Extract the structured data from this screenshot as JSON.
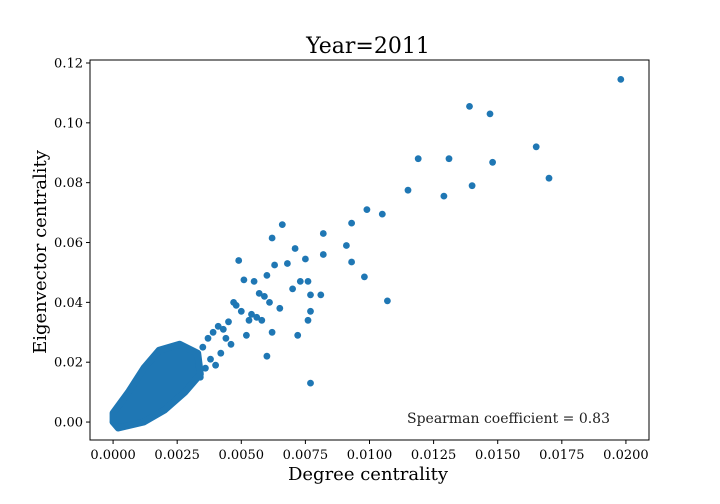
{
  "chart_data": {
    "type": "scatter",
    "title": "Year=2011",
    "xlabel": "Degree centrality",
    "ylabel": "Eigenvector centrality",
    "xlim": [
      -0.0009,
      0.0209
    ],
    "ylim": [
      -0.006,
      0.121
    ],
    "x_ticks": [
      "0.0000",
      "0.0025",
      "0.0050",
      "0.0075",
      "0.0100",
      "0.0125",
      "0.0150",
      "0.0175",
      "0.0200"
    ],
    "y_ticks": [
      "0.00",
      "0.02",
      "0.04",
      "0.06",
      "0.08",
      "0.10",
      "0.12"
    ],
    "annotation": "Spearman coefficient = 0.83",
    "grid": false,
    "marker_color": "#1f77b4",
    "series": [
      {
        "x": [
          0.0198,
          0.0139,
          0.0147,
          0.0165,
          0.017,
          0.0148,
          0.014,
          0.0131,
          0.0119,
          0.0115,
          0.0129,
          0.0105,
          0.0099,
          0.0093,
          0.0091,
          0.0082,
          0.0082,
          0.0093,
          0.0098,
          0.0107,
          0.0071,
          0.0075,
          0.0076,
          0.0077,
          0.0081,
          0.0077,
          0.0076,
          0.0072,
          0.0066,
          0.0062,
          0.006,
          0.0063,
          0.0068,
          0.007,
          0.0073,
          0.0057,
          0.0055,
          0.0051,
          0.0049,
          0.0048,
          0.0054,
          0.0059,
          0.0061,
          0.0065,
          0.0062,
          0.0058,
          0.0056,
          0.0053,
          0.0047,
          0.0045,
          0.0043,
          0.005,
          0.0052,
          0.0044,
          0.0041,
          0.0039,
          0.0037,
          0.0046,
          0.0035,
          0.0038,
          0.0033,
          0.0036,
          0.004,
          0.006,
          0.0077,
          0.0042,
          0.0034,
          0.0031,
          0.0029,
          0.0027,
          0.0026,
          0.0024,
          0.0022,
          0.002,
          0.0019,
          0.0018,
          0.0032,
          0.0028,
          0.0025,
          0.0021,
          0.0017,
          0.0015,
          0.0014,
          0.0013,
          0.0012,
          0.0011,
          0.001,
          0.0009,
          0.0008,
          0.0007,
          0.0006,
          0.0005,
          0.0004,
          0.0003,
          0.0002,
          0.0001,
          0.0,
          0.0016,
          0.0023,
          0.003
        ],
        "y": [
          0.1145,
          0.1055,
          0.103,
          0.092,
          0.0815,
          0.0868,
          0.079,
          0.088,
          0.088,
          0.0775,
          0.0755,
          0.0695,
          0.071,
          0.0665,
          0.059,
          0.063,
          0.056,
          0.0535,
          0.0485,
          0.0405,
          0.058,
          0.0545,
          0.047,
          0.0425,
          0.0425,
          0.037,
          0.034,
          0.029,
          0.066,
          0.0615,
          0.049,
          0.0525,
          0.053,
          0.0445,
          0.047,
          0.043,
          0.047,
          0.0475,
          0.054,
          0.039,
          0.036,
          0.042,
          0.04,
          0.038,
          0.03,
          0.034,
          0.035,
          0.034,
          0.04,
          0.0335,
          0.031,
          0.037,
          0.029,
          0.028,
          0.032,
          0.03,
          0.028,
          0.026,
          0.025,
          0.021,
          0.02,
          0.018,
          0.019,
          0.022,
          0.013,
          0.023,
          0.015,
          0.017,
          0.023,
          0.016,
          0.019,
          0.013,
          0.018,
          0.017,
          0.012,
          0.014,
          0.023,
          0.02,
          0.019,
          0.015,
          0.013,
          0.012,
          0.011,
          0.01,
          0.009,
          0.008,
          0.007,
          0.006,
          0.005,
          0.0045,
          0.004,
          0.003,
          0.0025,
          0.002,
          0.001,
          0.0005,
          0.0,
          0.016,
          0.021,
          0.024
        ]
      }
    ]
  }
}
